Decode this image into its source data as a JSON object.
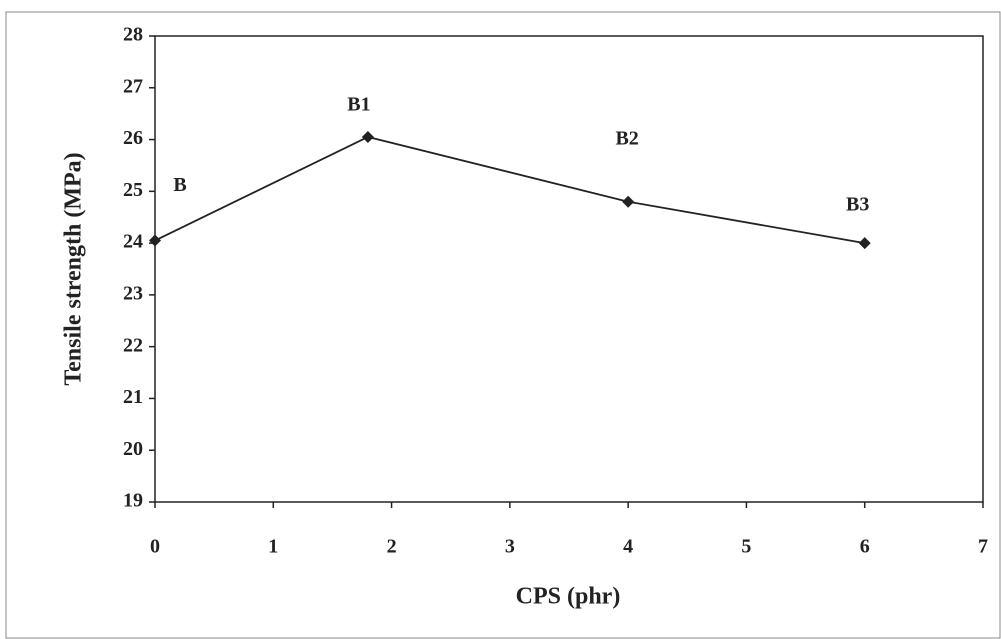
{
  "chart_data": {
    "type": "line",
    "x_label": "CPS (phr)",
    "y_label": "Tensile strength (MPa)",
    "xlim": [
      0,
      7
    ],
    "xticks": [
      0,
      1,
      2,
      3,
      4,
      5,
      6,
      7
    ],
    "ylim": [
      19,
      28
    ],
    "yticks": [
      19,
      20,
      21,
      22,
      23,
      24,
      25,
      26,
      27,
      28
    ],
    "grid": false,
    "series": [
      {
        "name": "Tensile strength",
        "color": "#222222",
        "x": [
          0,
          1.8,
          4,
          6
        ],
        "values": [
          24.05,
          26.05,
          24.8,
          24.0
        ],
        "point_labels": [
          "B",
          "B1",
          "B2",
          "B3"
        ]
      }
    ]
  }
}
